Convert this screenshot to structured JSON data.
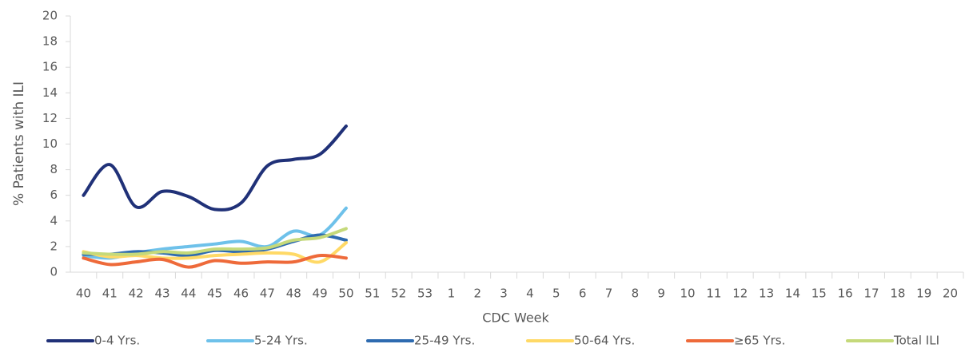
{
  "chart_data": {
    "type": "line",
    "x_label": "CDC Week",
    "y_label": "% Patients with ILI",
    "categories": [
      "40",
      "41",
      "42",
      "43",
      "44",
      "45",
      "46",
      "47",
      "48",
      "49",
      "50",
      "51",
      "52",
      "53",
      "1",
      "2",
      "3",
      "4",
      "5",
      "6",
      "7",
      "8",
      "9",
      "10",
      "11",
      "12",
      "13",
      "14",
      "15",
      "16",
      "17",
      "18",
      "19",
      "20"
    ],
    "series": [
      {
        "name": "0-4 Yrs.",
        "color": "#203178",
        "values": [
          6.0,
          8.4,
          5.1,
          6.3,
          5.9,
          4.9,
          5.4,
          8.3,
          8.8,
          9.2,
          11.4,
          null,
          null,
          null,
          null,
          null,
          null,
          null,
          null,
          null,
          null,
          null,
          null,
          null,
          null,
          null,
          null,
          null,
          null,
          null,
          null,
          null,
          null,
          null
        ]
      },
      {
        "name": "5-24 Yrs.",
        "color": "#6ec1ea",
        "values": [
          1.3,
          1.1,
          1.5,
          1.8,
          2.0,
          2.2,
          2.4,
          2.0,
          3.2,
          2.9,
          5.0,
          null,
          null,
          null,
          null,
          null,
          null,
          null,
          null,
          null,
          null,
          null,
          null,
          null,
          null,
          null,
          null,
          null,
          null,
          null,
          null,
          null,
          null,
          null
        ]
      },
      {
        "name": "25-49 Yrs.",
        "color": "#2e6bb0",
        "values": [
          1.4,
          1.4,
          1.6,
          1.5,
          1.3,
          1.7,
          1.6,
          1.8,
          2.4,
          2.9,
          2.5,
          null,
          null,
          null,
          null,
          null,
          null,
          null,
          null,
          null,
          null,
          null,
          null,
          null,
          null,
          null,
          null,
          null,
          null,
          null,
          null,
          null,
          null,
          null
        ]
      },
      {
        "name": "50-64 Yrs.",
        "color": "#ffd966",
        "values": [
          1.6,
          1.2,
          1.3,
          1.1,
          1.1,
          1.3,
          1.4,
          1.5,
          1.4,
          0.8,
          2.3,
          null,
          null,
          null,
          null,
          null,
          null,
          null,
          null,
          null,
          null,
          null,
          null,
          null,
          null,
          null,
          null,
          null,
          null,
          null,
          null,
          null,
          null,
          null
        ]
      },
      {
        "name": "≥65 Yrs.",
        "color": "#ee6a3a",
        "values": [
          1.1,
          0.6,
          0.8,
          1.0,
          0.4,
          0.9,
          0.7,
          0.8,
          0.8,
          1.3,
          1.1,
          null,
          null,
          null,
          null,
          null,
          null,
          null,
          null,
          null,
          null,
          null,
          null,
          null,
          null,
          null,
          null,
          null,
          null,
          null,
          null,
          null,
          null,
          null
        ]
      },
      {
        "name": "Total ILI",
        "color": "#c5d97a",
        "values": [
          1.5,
          1.4,
          1.4,
          1.6,
          1.5,
          1.8,
          1.8,
          1.9,
          2.5,
          2.7,
          3.4,
          null,
          null,
          null,
          null,
          null,
          null,
          null,
          null,
          null,
          null,
          null,
          null,
          null,
          null,
          null,
          null,
          null,
          null,
          null,
          null,
          null,
          null,
          null
        ]
      }
    ],
    "ylim": [
      0,
      20
    ],
    "yticks": [
      0,
      2,
      4,
      6,
      8,
      10,
      12,
      14,
      16,
      18,
      20
    ],
    "smooth": true,
    "legend": "bottom"
  }
}
